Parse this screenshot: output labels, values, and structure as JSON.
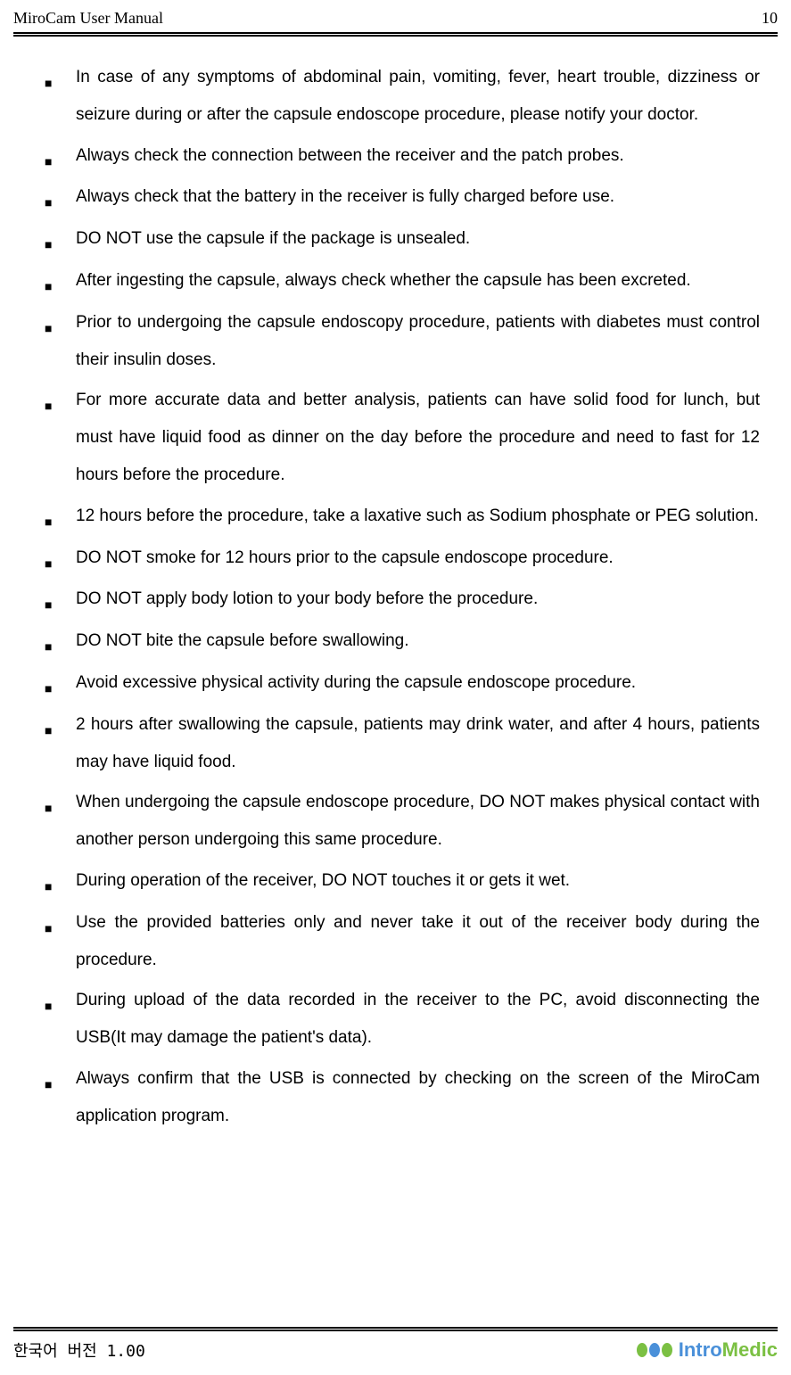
{
  "header": {
    "title": "MiroCam User Manual",
    "page_number": "10"
  },
  "bullets": [
    "In case of any symptoms of abdominal pain, vomiting, fever, heart trouble, dizziness or seizure during or after the capsule endoscope procedure, please notify your doctor.",
    "Always check the connection between the receiver and the patch probes.",
    "Always check that the battery in the receiver is fully charged before use.",
    "DO NOT use the capsule if the package is unsealed.",
    "After ingesting the capsule, always check whether the capsule has been excreted.",
    "Prior to undergoing the capsule endoscopy procedure, patients with diabetes must control their insulin doses.",
    "For more accurate data and better analysis, patients can have solid food for lunch, but must have liquid food as dinner on the day before the procedure and need to fast for 12 hours before the procedure.",
    "12 hours before the procedure, take a laxative such as Sodium phosphate or PEG solution.",
    "DO NOT smoke for 12 hours prior to the capsule endoscope procedure.",
    "DO NOT apply body lotion to your body before the procedure.",
    "DO NOT bite the capsule before swallowing.",
    "Avoid excessive physical activity during the capsule endoscope procedure.",
    "2 hours after swallowing the capsule, patients may drink water, and after 4 hours, patients may have liquid food.",
    "When undergoing the capsule endoscope procedure, DO NOT makes physical contact with another person undergoing this same procedure.",
    "During operation of the receiver, DO NOT touches it or gets it wet.",
    "Use the provided batteries only and never take it out of the receiver body during the procedure.",
    "During upload of the data recorded in the receiver to the PC, avoid disconnecting the USB(It may damage the patient's data).",
    "Always confirm that the USB is connected by checking on the screen of the MiroCam application program."
  ],
  "footer": {
    "version": "한국어 버전 1.00",
    "logo_intro": "Intro",
    "logo_medic": "Medic"
  },
  "colors": {
    "text": "#000000",
    "background": "#ffffff",
    "logo_green": "#7bc043",
    "logo_blue": "#4a90d9"
  }
}
